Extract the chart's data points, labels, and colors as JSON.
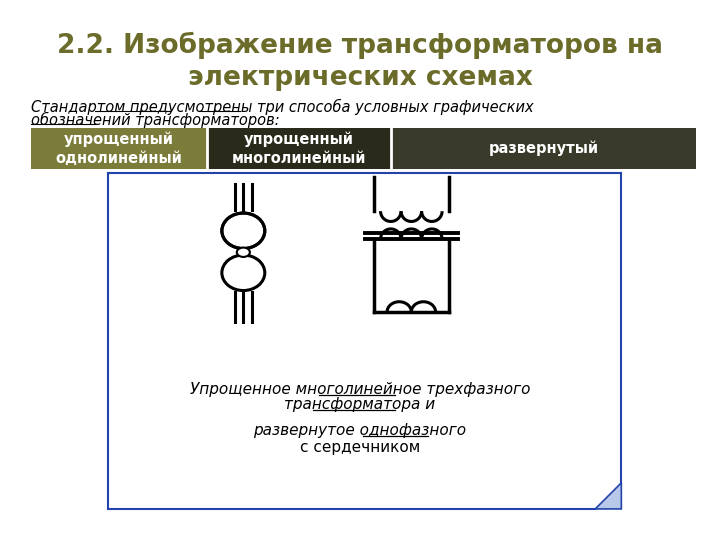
{
  "title": "2.2. Изображение трансформаторов на\nэлектрических схемах",
  "title_color": "#6b6b2a",
  "table_headers": [
    "упрощенный\nоднолинейный",
    "упрощенный\nмноголинейный",
    "развернутый"
  ],
  "table_col1_bg": "#7b7b3a",
  "table_col2_bg": "#2a2a1a",
  "table_col3_bg": "#3a3a2a",
  "table_text_color": "#ffffff",
  "box_border_color": "#2244aa",
  "box_bg_color": "#ffffff",
  "bg_color": "#ffffff"
}
